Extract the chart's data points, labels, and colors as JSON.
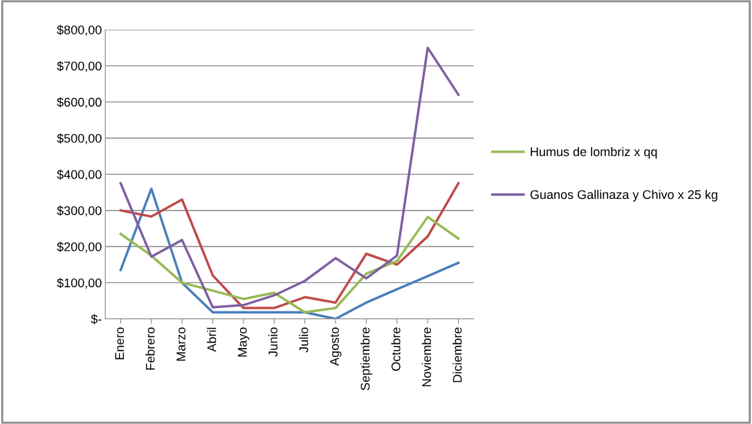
{
  "chart_data": {
    "type": "line",
    "categories": [
      "Enero",
      "Febrero",
      "Marzo",
      "Abril",
      "Mayo",
      "Junio",
      "Julio",
      "Agosto",
      "Septiembre",
      "Octubre",
      "Noviembre",
      "Diciembre"
    ],
    "series": [
      {
        "color": "#4a7ebb",
        "values": [
          135,
          360,
          100,
          18,
          18,
          18,
          18,
          0,
          45,
          82,
          118,
          155
        ]
      },
      {
        "color": "#be4b48",
        "values": [
          300,
          283,
          330,
          120,
          30,
          30,
          60,
          45,
          180,
          150,
          228,
          375
        ]
      },
      {
        "name": "Humus de lombriz x qq",
        "color": "#98b954",
        "values": [
          235,
          175,
          100,
          78,
          55,
          72,
          18,
          30,
          125,
          160,
          282,
          222
        ]
      },
      {
        "name": "Guanos Gallinaza y Chivo x 25 kg",
        "color": "#7d60a0",
        "values": [
          375,
          172,
          218,
          32,
          38,
          65,
          105,
          168,
          112,
          175,
          750,
          620
        ]
      }
    ],
    "ylim": [
      0,
      800
    ],
    "yticks": [
      {
        "value": 0,
        "label": "$-"
      },
      {
        "value": 100,
        "label": "$100,00"
      },
      {
        "value": 200,
        "label": "$200,00"
      },
      {
        "value": 300,
        "label": "$300,00"
      },
      {
        "value": 400,
        "label": "$400,00"
      },
      {
        "value": 500,
        "label": "$500,00"
      },
      {
        "value": 600,
        "label": "$600,00"
      },
      {
        "value": 700,
        "label": "$700,00"
      },
      {
        "value": 800,
        "label": "$800,00"
      }
    ],
    "grid": "y",
    "legend": "right",
    "marker": "none",
    "line_style": "solid"
  }
}
